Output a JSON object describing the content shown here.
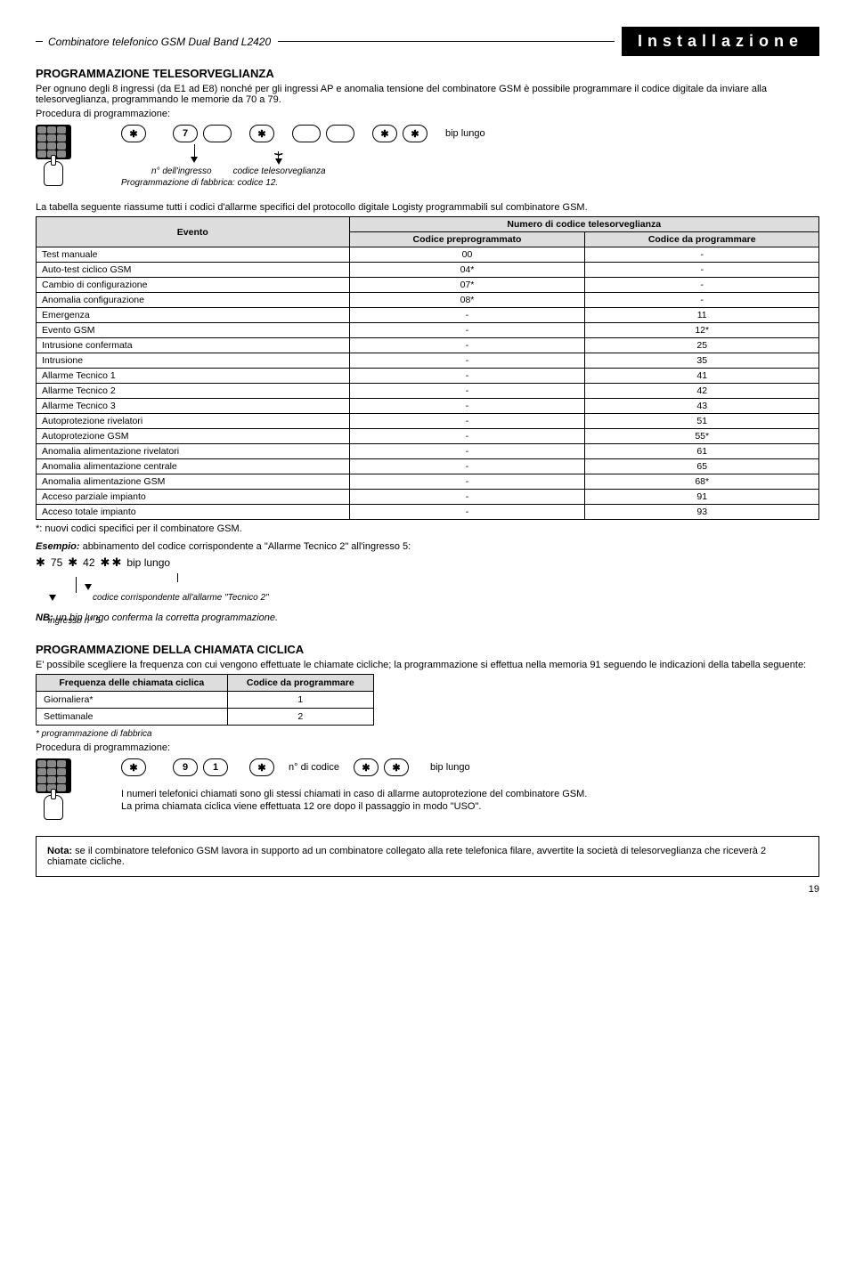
{
  "header": {
    "product": "Combinatore telefonico GSM Dual Band L2420",
    "section": "Installazione"
  },
  "s1": {
    "title": "PROGRAMMAZIONE TELESORVEGLIANZA",
    "intro": "Per ognuno degli 8 ingressi (da E1 ad E8) nonché per gli ingressi AP e anomalia tensione del combinatore GSM è possibile programmare il codice digitale da inviare alla telesorveglianza, programmando le memorie da 70 a 79.",
    "proc": "Procedura di programmazione:",
    "keys": {
      "star": "✱",
      "d7": "7",
      "bip": "bip lungo"
    },
    "anno": {
      "ing": "n° dell'ingresso",
      "cod": "codice telesorveglianza",
      "fab": "Programmazione di fabbrica: codice 12."
    },
    "tableintro": "La tabella seguente riassume tutti i codici d'allarme specifici del protocollo digitale Logisty programmabili sul combinatore GSM.",
    "th": {
      "ev": "Evento",
      "num": "Numero di codice telesorveglianza",
      "pre": "Codice preprogrammato",
      "prog": "Codice da programmare"
    },
    "rows": [
      {
        "e": "Test manuale",
        "p": "00",
        "c": "-"
      },
      {
        "e": "Auto-test ciclico GSM",
        "p": "04*",
        "c": "-"
      },
      {
        "e": "Cambio di configurazione",
        "p": "07*",
        "c": "-"
      },
      {
        "e": "Anomalia configurazione",
        "p": "08*",
        "c": "-"
      },
      {
        "e": "Emergenza",
        "p": "-",
        "c": "11"
      },
      {
        "e": "Evento GSM",
        "p": "-",
        "c": "12*"
      },
      {
        "e": "Intrusione confermata",
        "p": "-",
        "c": "25"
      },
      {
        "e": "Intrusione",
        "p": "-",
        "c": "35"
      },
      {
        "e": "Allarme Tecnico 1",
        "p": "-",
        "c": "41"
      },
      {
        "e": "Allarme Tecnico 2",
        "p": "-",
        "c": "42"
      },
      {
        "e": "Allarme Tecnico 3",
        "p": "-",
        "c": "43"
      },
      {
        "e": "Autoprotezione rivelatori",
        "p": "-",
        "c": "51"
      },
      {
        "e": "Autoprotezione GSM",
        "p": "-",
        "c": "55*"
      },
      {
        "e": "Anomalia alimentazione rivelatori",
        "p": "-",
        "c": "61"
      },
      {
        "e": "Anomalia alimentazione centrale",
        "p": "-",
        "c": "65"
      },
      {
        "e": "Anomalia alimentazione GSM",
        "p": "-",
        "c": "68*"
      },
      {
        "e": "Acceso parziale impianto",
        "p": "-",
        "c": "91"
      },
      {
        "e": "Acceso totale impianto",
        "p": "-",
        "c": "93"
      }
    ],
    "foot": "*: nuovi codici specifici per il combinatore GSM.",
    "ex_lbl": "Esempio:",
    "ex_txt": " abbinamento del codice corrispondente a \"Allarme Tecnico 2\" all'ingresso 5:",
    "ex": {
      "v1": "75",
      "v2": "42",
      "bip": "bip lungo",
      "a1": "ingresso n° 5",
      "a2": "codice corrispondente all'allarme \"Tecnico 2\""
    },
    "nb_lbl": "NB:",
    "nb": " un bip lungo conferma la corretta programmazione."
  },
  "s2": {
    "title": "PROGRAMMAZIONE DELLA CHIAMATA CICLICA",
    "intro": "E' possibile scegliere la frequenza con cui vengono effettuate le chiamate cicliche; la programmazione si effettua nella memoria 91 seguendo le indicazioni della tabella seguente:",
    "th": {
      "f": "Frequenza delle chiamata ciclica",
      "c": "Codice da programmare"
    },
    "rows": [
      {
        "f": "Giornaliera*",
        "c": "1"
      },
      {
        "f": "Settimanale",
        "c": "2"
      }
    ],
    "foot": "* programmazione di fabbrica",
    "proc": "Procedura di programmazione:",
    "keys": {
      "d9": "9",
      "d1": "1",
      "ncod": "n° di codice",
      "bip": "bip lungo"
    },
    "p1": "I numeri telefonici chiamati sono gli stessi chiamati in caso di allarme autoprotezione del combinatore GSM.",
    "p2": "La prima chiamata ciclica viene effettuata 12 ore dopo il passaggio in modo \"USO\"."
  },
  "note": {
    "lbl": "Nota:",
    "txt": " se il combinatore telefonico GSM lavora in supporto ad un combinatore collegato alla rete telefonica filare, avvertite la società di telesorveglianza che riceverà 2 chiamate cicliche."
  },
  "page": "19"
}
